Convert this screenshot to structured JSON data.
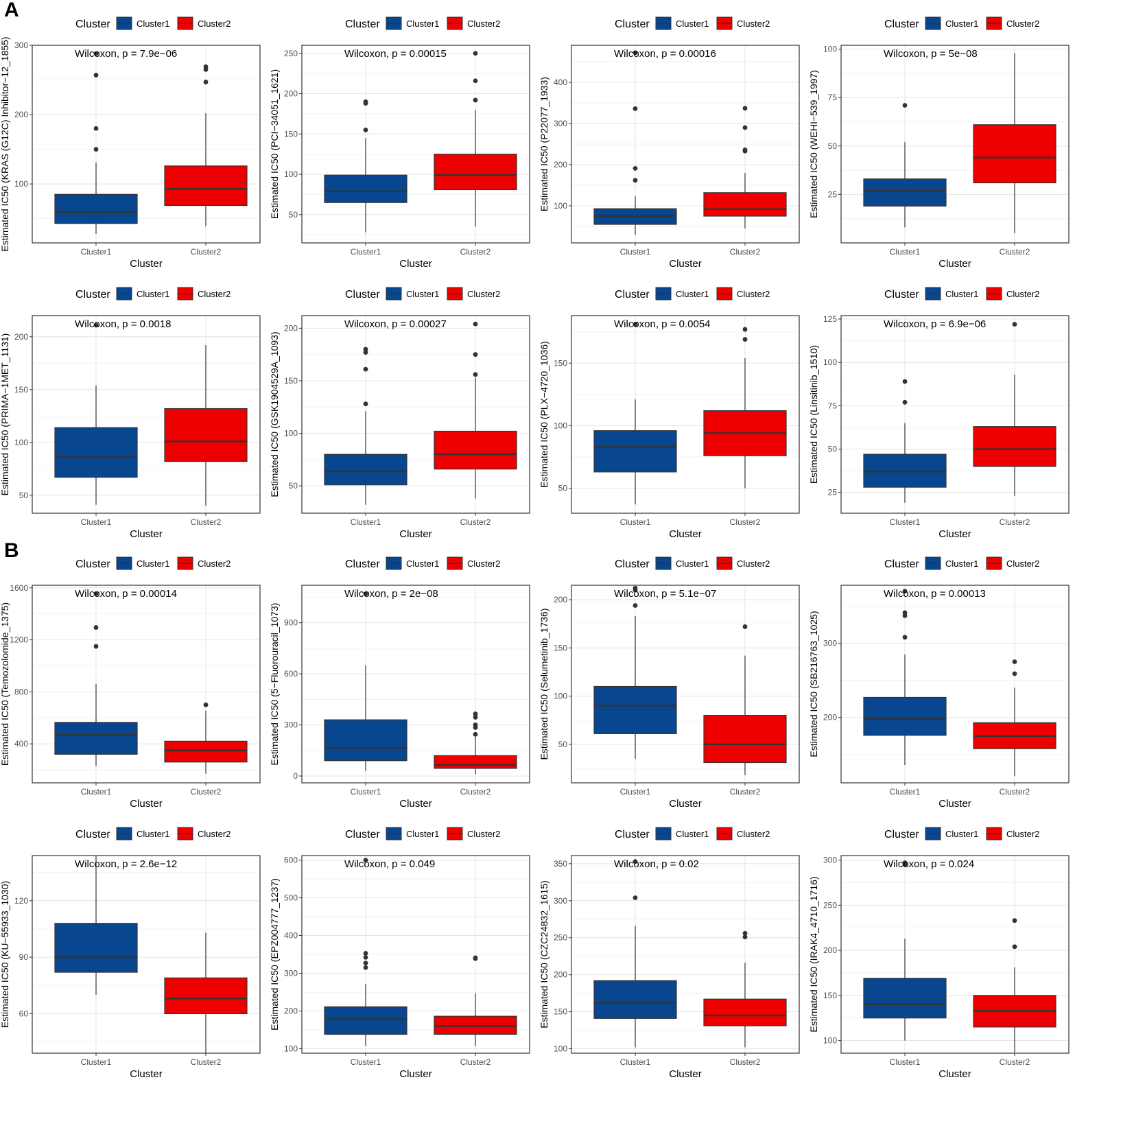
{
  "figure": {
    "section_labels": [
      "A",
      "B"
    ],
    "legend": {
      "title": "Cluster",
      "entries": [
        {
          "label": "Cluster1",
          "color": "#08478f"
        },
        {
          "label": "Cluster2",
          "color": "#ee0000"
        }
      ]
    },
    "xlabel": "Cluster",
    "categories": [
      "Cluster1",
      "Cluster2"
    ],
    "colors": {
      "Cluster1": "#08478f",
      "Cluster2": "#ee0000",
      "median": "#333333",
      "outlier": "#333333",
      "grid_major": "#e4e4e4",
      "grid_minor": "#f2f2f2"
    }
  },
  "chart_data": [
    {
      "type": "boxplot",
      "test_label": "Wilcoxon, p = 7.9e−06",
      "ylabel": "Estimated IC50 (KRAS (G12C) Inhibitor−12_1855)",
      "ylim": [
        15,
        300
      ],
      "yticks": [
        100,
        200,
        300
      ],
      "ytick_labels": [
        "100",
        "200",
        "300"
      ],
      "boxes": [
        {
          "category": "Cluster1",
          "whisker_low": 28,
          "q1": 43,
          "median": 59,
          "q3": 85,
          "whisker_high": 131,
          "outliers": [
            150,
            180,
            257,
            288
          ]
        },
        {
          "category": "Cluster2",
          "whisker_low": 39,
          "q1": 69,
          "median": 93,
          "q3": 126,
          "whisker_high": 202,
          "outliers": [
            247,
            265,
            269
          ]
        }
      ]
    },
    {
      "type": "boxplot",
      "test_label": "Wilcoxon, p = 0.00015",
      "ylabel": "Estimated IC50 (PCI−34051_1621)",
      "ylim": [
        15,
        260
      ],
      "yticks": [
        50,
        100,
        150,
        200,
        250
      ],
      "ytick_labels": [
        "50",
        "100",
        "150",
        "200",
        "250"
      ],
      "boxes": [
        {
          "category": "Cluster1",
          "whisker_low": 28,
          "q1": 65,
          "median": 79,
          "q3": 99,
          "whisker_high": 145,
          "outliers": [
            155,
            188,
            190
          ]
        },
        {
          "category": "Cluster2",
          "whisker_low": 35,
          "q1": 81,
          "median": 99,
          "q3": 125,
          "whisker_high": 180,
          "outliers": [
            192,
            216,
            250
          ]
        }
      ]
    },
    {
      "type": "boxplot",
      "test_label": "Wilcoxon, p = 0.00016",
      "ylabel": "Estimated IC50 (P22077_1933)",
      "ylim": [
        10,
        490
      ],
      "yticks": [
        100,
        200,
        300,
        400
      ],
      "ytick_labels": [
        "100",
        "200",
        "300",
        "400"
      ],
      "boxes": [
        {
          "category": "Cluster1",
          "whisker_low": 30,
          "q1": 55,
          "median": 75,
          "q3": 93,
          "whisker_high": 123,
          "outliers": [
            162,
            191,
            336,
            472
          ]
        },
        {
          "category": "Cluster2",
          "whisker_low": 45,
          "q1": 75,
          "median": 92,
          "q3": 132,
          "whisker_high": 180,
          "outliers": [
            233,
            236,
            290,
            337
          ]
        }
      ]
    },
    {
      "type": "boxplot",
      "test_label": "Wilcoxon, p = 5e−08",
      "ylabel": "Estimated IC50 (WEHI−539_1997)",
      "ylim": [
        0,
        102
      ],
      "yticks": [
        25,
        50,
        75,
        100
      ],
      "ytick_labels": [
        "25",
        "50",
        "75",
        "100"
      ],
      "boxes": [
        {
          "category": "Cluster1",
          "whisker_low": 8,
          "q1": 19,
          "median": 27,
          "q3": 33,
          "whisker_high": 52,
          "outliers": [
            71
          ]
        },
        {
          "category": "Cluster2",
          "whisker_low": 5,
          "q1": 31,
          "median": 44,
          "q3": 61,
          "whisker_high": 98,
          "outliers": []
        }
      ]
    },
    {
      "type": "boxplot",
      "test_label": "Wilcoxon, p = 0.0018",
      "ylabel": "Estimated IC50 (PRIMA−1MET_1131)",
      "ylim": [
        33,
        220
      ],
      "yticks": [
        50,
        100,
        150,
        200
      ],
      "ytick_labels": [
        "50",
        "100",
        "150",
        "200"
      ],
      "boxes": [
        {
          "category": "Cluster1",
          "whisker_low": 41,
          "q1": 67,
          "median": 86,
          "q3": 114,
          "whisker_high": 154,
          "outliers": [
            211
          ]
        },
        {
          "category": "Cluster2",
          "whisker_low": 40,
          "q1": 82,
          "median": 101,
          "q3": 132,
          "whisker_high": 192,
          "outliers": []
        }
      ]
    },
    {
      "type": "boxplot",
      "test_label": "Wilcoxon, p = 0.00027",
      "ylabel": "Estimated IC50 (GSK1904529A_1093)",
      "ylim": [
        24,
        212
      ],
      "yticks": [
        50,
        100,
        150,
        200
      ],
      "ytick_labels": [
        "50",
        "100",
        "150",
        "200"
      ],
      "boxes": [
        {
          "category": "Cluster1",
          "whisker_low": 32,
          "q1": 51,
          "median": 64,
          "q3": 80,
          "whisker_high": 121,
          "outliers": [
            128,
            161,
            177,
            180
          ]
        },
        {
          "category": "Cluster2",
          "whisker_low": 38,
          "q1": 66,
          "median": 80,
          "q3": 102,
          "whisker_high": 153,
          "outliers": [
            156,
            175,
            204
          ]
        }
      ]
    },
    {
      "type": "boxplot",
      "test_label": "Wilcoxon, p = 0.0054",
      "ylabel": "Estimated IC50 (PLX−4720_1036)",
      "ylim": [
        30,
        188
      ],
      "yticks": [
        50,
        100,
        150
      ],
      "ytick_labels": [
        "50",
        "100",
        "150"
      ],
      "boxes": [
        {
          "category": "Cluster1",
          "whisker_low": 37,
          "q1": 63,
          "median": 83,
          "q3": 96,
          "whisker_high": 121,
          "outliers": [
            181
          ]
        },
        {
          "category": "Cluster2",
          "whisker_low": 50,
          "q1": 76,
          "median": 94,
          "q3": 112,
          "whisker_high": 154,
          "outliers": [
            169,
            177
          ]
        }
      ]
    },
    {
      "type": "boxplot",
      "test_label": "Wilcoxon, p = 6.9e−06",
      "ylabel": "Estimated IC50 (Linsitinib_1510)",
      "ylim": [
        13,
        127
      ],
      "yticks": [
        25,
        50,
        75,
        100,
        125
      ],
      "ytick_labels": [
        "25",
        "50",
        "75",
        "100",
        "125"
      ],
      "boxes": [
        {
          "category": "Cluster1",
          "whisker_low": 19,
          "q1": 28,
          "median": 37,
          "q3": 47,
          "whisker_high": 65,
          "outliers": [
            77,
            89
          ]
        },
        {
          "category": "Cluster2",
          "whisker_low": 23,
          "q1": 40,
          "median": 50,
          "q3": 63,
          "whisker_high": 93,
          "outliers": [
            122
          ]
        }
      ]
    },
    {
      "type": "boxplot",
      "test_label": "Wilcoxon, p = 0.00014",
      "ylabel": "Estimated IC50 (Temozolomide_1375)",
      "ylim": [
        100,
        1620
      ],
      "yticks": [
        400,
        800,
        1200,
        1600
      ],
      "ytick_labels": [
        "400",
        "800",
        "1200",
        "1600"
      ],
      "boxes": [
        {
          "category": "Cluster1",
          "whisker_low": 230,
          "q1": 320,
          "median": 470,
          "q3": 565,
          "whisker_high": 860,
          "outliers": [
            1150,
            1295,
            1555
          ]
        },
        {
          "category": "Cluster2",
          "whisker_low": 170,
          "q1": 260,
          "median": 350,
          "q3": 420,
          "whisker_high": 655,
          "outliers": [
            700
          ]
        }
      ]
    },
    {
      "type": "boxplot",
      "test_label": "Wilcoxon, p = 2e−08",
      "ylabel": "Estimated IC50 (5−Fluorouracil_1073)",
      "ylim": [
        -40,
        1120
      ],
      "yticks": [
        0,
        300,
        600,
        900
      ],
      "ytick_labels": [
        "0",
        "300",
        "600",
        "900"
      ],
      "boxes": [
        {
          "category": "Cluster1",
          "whisker_low": 30,
          "q1": 90,
          "median": 165,
          "q3": 330,
          "whisker_high": 650,
          "outliers": [
            1070
          ]
        },
        {
          "category": "Cluster2",
          "whisker_low": 10,
          "q1": 45,
          "median": 65,
          "q3": 120,
          "whisker_high": 240,
          "outliers": [
            245,
            285,
            300,
            345,
            365
          ]
        }
      ]
    },
    {
      "type": "boxplot",
      "test_label": "Wilcoxon, p = 5.1e−07",
      "ylabel": "Estimated IC50 (Selumetinib_1736)",
      "ylim": [
        10,
        215
      ],
      "yticks": [
        50,
        100,
        150,
        200
      ],
      "ytick_labels": [
        "50",
        "100",
        "150",
        "200"
      ],
      "boxes": [
        {
          "category": "Cluster1",
          "whisker_low": 35,
          "q1": 61,
          "median": 90,
          "q3": 110,
          "whisker_high": 183,
          "outliers": [
            194,
            210,
            212
          ]
        },
        {
          "category": "Cluster2",
          "whisker_low": 18,
          "q1": 31,
          "median": 50,
          "q3": 80,
          "whisker_high": 142,
          "outliers": [
            172
          ]
        }
      ]
    },
    {
      "type": "boxplot",
      "test_label": "Wilcoxon, p = 0.00013",
      "ylabel": "Estimated IC50 (SB216763_1025)",
      "ylim": [
        112,
        378
      ],
      "yticks": [
        200,
        300
      ],
      "ytick_labels": [
        "200",
        "300"
      ],
      "boxes": [
        {
          "category": "Cluster1",
          "whisker_low": 136,
          "q1": 176,
          "median": 198,
          "q3": 227,
          "whisker_high": 285,
          "outliers": [
            308,
            337,
            341,
            370
          ]
        },
        {
          "category": "Cluster2",
          "whisker_low": 121,
          "q1": 158,
          "median": 175,
          "q3": 193,
          "whisker_high": 240,
          "outliers": [
            259,
            275
          ]
        }
      ]
    },
    {
      "type": "boxplot",
      "test_label": "Wilcoxon, p = 2.6e−12",
      "ylabel": "Estimated IC50 (KU−55933_1030)",
      "ylim": [
        39,
        144
      ],
      "yticks": [
        60,
        90,
        120
      ],
      "ytick_labels": [
        "60",
        "90",
        "120"
      ],
      "boxes": [
        {
          "category": "Cluster1",
          "whisker_low": 70,
          "q1": 82,
          "median": 90,
          "q3": 108,
          "whisker_high": 144,
          "outliers": []
        },
        {
          "category": "Cluster2",
          "whisker_low": 39,
          "q1": 60,
          "median": 68,
          "q3": 79,
          "whisker_high": 103,
          "outliers": []
        }
      ]
    },
    {
      "type": "boxplot",
      "test_label": "Wilcoxon, p = 0.049",
      "ylabel": "Estimated IC50 (EPZ004777_1237)",
      "ylim": [
        88,
        612
      ],
      "yticks": [
        100,
        200,
        300,
        400,
        500,
        600
      ],
      "ytick_labels": [
        "100",
        "200",
        "300",
        "400",
        "500",
        "600"
      ],
      "boxes": [
        {
          "category": "Cluster1",
          "whisker_low": 107,
          "q1": 138,
          "median": 178,
          "q3": 211,
          "whisker_high": 272,
          "outliers": [
            315,
            327,
            342,
            353,
            600
          ]
        },
        {
          "category": "Cluster2",
          "whisker_low": 107,
          "q1": 138,
          "median": 160,
          "q3": 186,
          "whisker_high": 247,
          "outliers": [
            339,
            341
          ]
        }
      ]
    },
    {
      "type": "boxplot",
      "test_label": "Wilcoxon, p = 0.02",
      "ylabel": "Estimated IC50 (CZC24832_1615)",
      "ylim": [
        94,
        361
      ],
      "yticks": [
        100,
        150,
        200,
        250,
        300,
        350
      ],
      "ytick_labels": [
        "100",
        "150",
        "200",
        "250",
        "300",
        "350"
      ],
      "boxes": [
        {
          "category": "Cluster1",
          "whisker_low": 102,
          "q1": 141,
          "median": 162,
          "q3": 192,
          "whisker_high": 266,
          "outliers": [
            304,
            353
          ]
        },
        {
          "category": "Cluster2",
          "whisker_low": 102,
          "q1": 131,
          "median": 145,
          "q3": 167,
          "whisker_high": 216,
          "outliers": [
            251,
            256
          ]
        }
      ]
    },
    {
      "type": "boxplot",
      "test_label": "Wilcoxon, p = 0.024",
      "ylabel": "Estimated IC50 (IRAK4_4710_1716)",
      "ylim": [
        86,
        305
      ],
      "yticks": [
        100,
        150,
        200,
        250,
        300
      ],
      "ytick_labels": [
        "100",
        "150",
        "200",
        "250",
        "300"
      ],
      "boxes": [
        {
          "category": "Cluster1",
          "whisker_low": 100,
          "q1": 125,
          "median": 140,
          "q3": 169,
          "whisker_high": 213,
          "outliers": [
            295,
            297
          ]
        },
        {
          "category": "Cluster2",
          "whisker_low": 87,
          "q1": 115,
          "median": 133,
          "q3": 150,
          "whisker_high": 181,
          "outliers": [
            204,
            233
          ]
        }
      ]
    }
  ]
}
